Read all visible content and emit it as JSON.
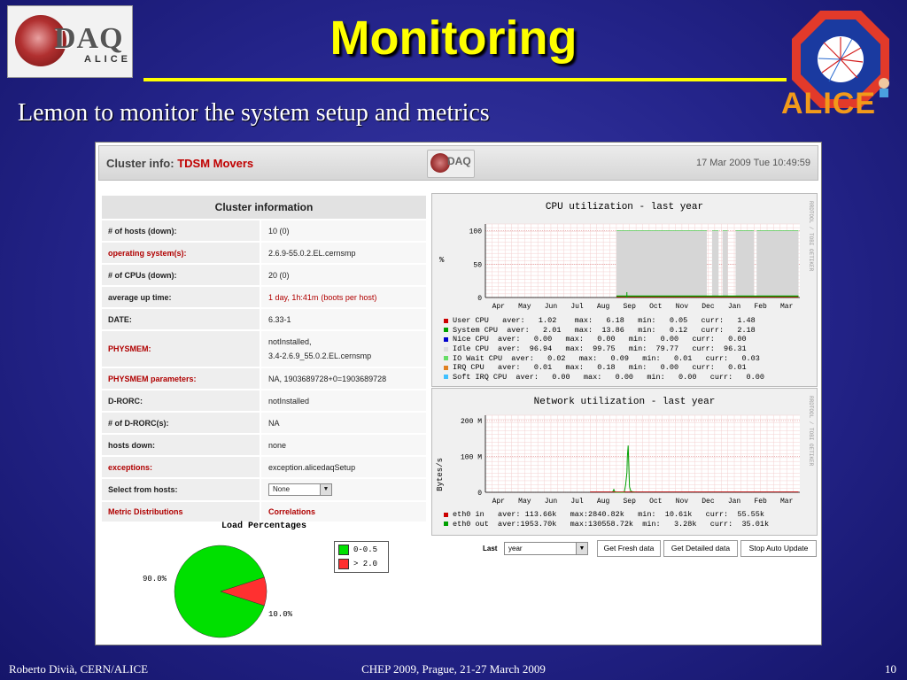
{
  "slide": {
    "title": "Monitoring",
    "subtitle": "Lemon to monitor the system setup and metrics",
    "logo_left": {
      "top": "DAQ",
      "bottom": "ALICE"
    },
    "logo_right": "ALICE",
    "footer_left": "Roberto Divià, CERN/ALICE",
    "footer_center": "CHEP 2009, Prague, 21-27 March 2009",
    "footer_right": "10"
  },
  "header": {
    "label": "Cluster info:",
    "cluster_name": "TDSM Movers",
    "timestamp": "17 Mar 2009 Tue 10:49:59",
    "mini_logo": "DAQ"
  },
  "cluster_info": {
    "title": "Cluster information",
    "rows": [
      {
        "key": "# of hosts (down):",
        "value": "10 (0)"
      },
      {
        "key": "operating system(s):",
        "value": "2.6.9-55.0.2.EL.cernsmp"
      },
      {
        "key": "# of CPUs (down):",
        "value": "20 (0)"
      },
      {
        "key": "average up time:",
        "value_red": "1 day, 1h:41m",
        "value_rest": "(boots per host)"
      },
      {
        "key": "DATE:",
        "value": "6.33-1"
      },
      {
        "key": "PHYSMEM:",
        "value_line1": "notInstalled,",
        "value_line2": "3.4-2.6.9_55.0.2.EL.cernsmp"
      },
      {
        "key": "PHYSMEM parameters:",
        "value": "NA, 1903689728+0=1903689728"
      },
      {
        "key": "D-RORC:",
        "value": "notInstalled"
      },
      {
        "key": "# of D-RORC(s):",
        "value": "NA"
      },
      {
        "key": "hosts down:",
        "value": "none"
      },
      {
        "key": "exceptions:",
        "value": "exception.alicedaqSetup"
      },
      {
        "key": "Select from hosts:",
        "select_value": "None"
      }
    ],
    "link_left": "Metric Distributions",
    "link_right": "Correlations"
  },
  "pie": {
    "title": "Load Percentages",
    "legend": [
      "0-0.5",
      "> 2.0"
    ],
    "label_big": "90.0%",
    "label_small": "10.0%",
    "colors": {
      "low": "#00e000",
      "high": "#ff3030"
    },
    "chart_data": {
      "type": "pie",
      "title": "Load Percentages",
      "categories": [
        "0-0.5",
        "> 2.0"
      ],
      "values": [
        90.0,
        10.0
      ]
    }
  },
  "cpu_graph": {
    "title": "CPU utilization - last year",
    "side_text": "RRDTOOL / TOBI OETIKER",
    "y_unit": "%",
    "y_ticks": [
      "100",
      "50",
      "0"
    ],
    "x_ticks": [
      "Apr",
      "May",
      "Jun",
      "Jul",
      "Aug",
      "Sep",
      "Oct",
      "Nov",
      "Dec",
      "Jan",
      "Feb",
      "Mar"
    ],
    "legend": [
      {
        "color": "#cc0000",
        "text": "User CPU   aver:   1.02    max:   6.18   min:   0.05   curr:   1.48"
      },
      {
        "color": "#00a000",
        "text": "System CPU  aver:   2.01   max:  13.86   min:   0.12   curr:   2.18"
      },
      {
        "color": "#0000cc",
        "text": "Nice CPU  aver:   0.00   max:   0.00   min:   0.00   curr:   0.00"
      },
      {
        "color": "#dddddd",
        "text": "Idle CPU  aver:  96.94   max:  99.75   min:  79.77   curr:  96.31"
      },
      {
        "color": "#66dd66",
        "text": "IO Wait CPU  aver:   0.02   max:   0.09   min:   0.01   curr:   0.03"
      },
      {
        "color": "#e08020",
        "text": "IRQ CPU   aver:   0.01   max:   0.18   min:   0.00   curr:   0.01"
      },
      {
        "color": "#40c0ff",
        "text": "Soft IRQ CPU  aver:   0.00   max:   0.00   min:   0.00   curr:   0.00"
      }
    ],
    "chart_data": {
      "type": "area",
      "title": "CPU utilization - last year",
      "ylabel": "%",
      "ylim": [
        0,
        100
      ],
      "x": [
        "Apr",
        "May",
        "Jun",
        "Jul",
        "Aug",
        "Sep",
        "Oct",
        "Nov",
        "Dec",
        "Jan",
        "Feb",
        "Mar"
      ],
      "series": [
        {
          "name": "Idle CPU",
          "values": [
            null,
            null,
            null,
            null,
            null,
            97,
            97,
            97,
            96,
            97,
            97,
            96
          ]
        },
        {
          "name": "System CPU",
          "values": [
            null,
            null,
            null,
            null,
            null,
            2,
            2,
            2,
            2,
            2,
            2,
            2
          ]
        },
        {
          "name": "User CPU",
          "values": [
            null,
            null,
            null,
            null,
            null,
            1,
            1,
            1,
            1,
            1,
            1,
            1
          ]
        }
      ]
    }
  },
  "net_graph": {
    "title": "Network utilization - last year",
    "side_text": "RRDTOOL / TOBI OETIKER",
    "y_label": "Bytes/s",
    "y_ticks": [
      "200 M",
      "100 M",
      "0"
    ],
    "x_ticks": [
      "Apr",
      "May",
      "Jun",
      "Jul",
      "Aug",
      "Sep",
      "Oct",
      "Nov",
      "Dec",
      "Jan",
      "Feb",
      "Mar"
    ],
    "legend": [
      {
        "color": "#cc0000",
        "text": "eth0 in   aver: 113.66k   max:2840.82k   min:  10.61k   curr:  55.55k"
      },
      {
        "color": "#00a000",
        "text": "eth0 out  aver:1953.70k   max:130558.72k  min:   3.28k   curr:  35.01k"
      }
    ],
    "chart_data": {
      "type": "line",
      "title": "Network utilization - last year",
      "ylabel": "Bytes/s",
      "ylim": [
        0,
        200000000
      ],
      "x": [
        "Apr",
        "May",
        "Jun",
        "Jul",
        "Aug",
        "Sep",
        "Oct",
        "Nov",
        "Dec",
        "Jan",
        "Feb",
        "Mar"
      ],
      "series": [
        {
          "name": "eth0 out",
          "peak": 130558720,
          "peak_month": "Sep"
        },
        {
          "name": "eth0 in",
          "peak": 2840820
        }
      ]
    }
  },
  "controls": {
    "last_label": "Last",
    "range_value": "year",
    "btn_fresh": "Get Fresh data",
    "btn_detailed": "Get Detailed data",
    "btn_stop": "Stop Auto Update"
  }
}
